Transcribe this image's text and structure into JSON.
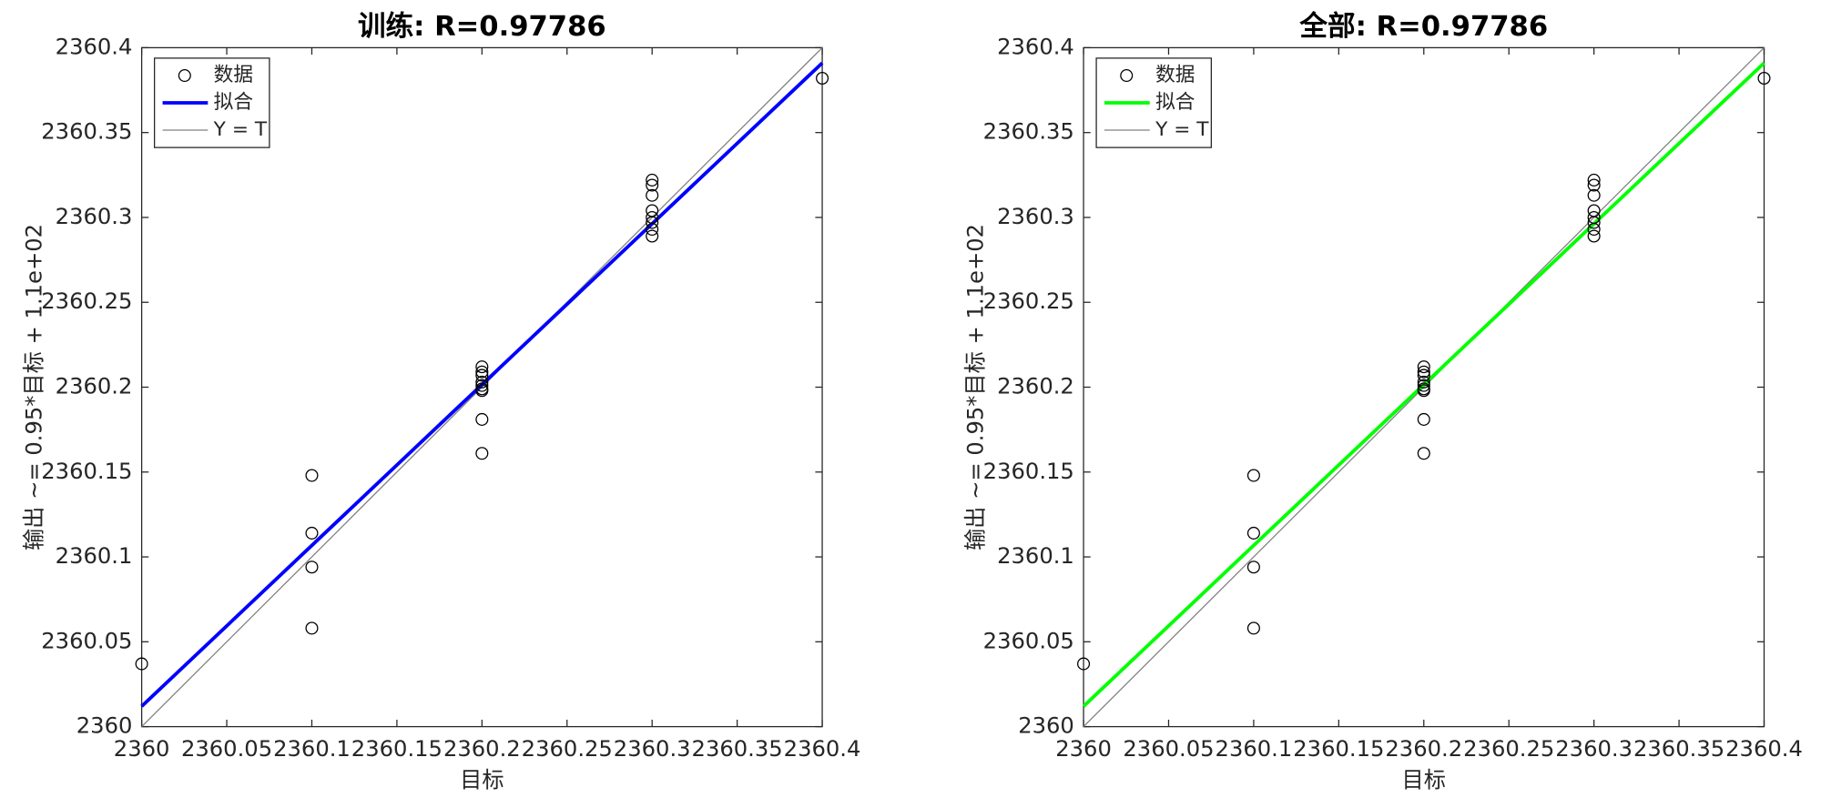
{
  "chart_data": [
    {
      "type": "scatter",
      "title": "训练: R=0.97786",
      "xlabel": "目标",
      "ylabel": "输出 ~= 0.95*目标 + 1.1e+02",
      "xlim": [
        2360,
        2360.4
      ],
      "ylim": [
        2360,
        2360.4
      ],
      "xticks": [
        2360,
        2360.05,
        2360.1,
        2360.15,
        2360.2,
        2360.25,
        2360.3,
        2360.35,
        2360.4
      ],
      "yticks": [
        2360,
        2360.05,
        2360.1,
        2360.15,
        2360.2,
        2360.25,
        2360.3,
        2360.35,
        2360.4
      ],
      "grid": false,
      "legend": "northwest",
      "series": [
        {
          "name": "数据",
          "color": "#000000",
          "mode": "markers",
          "x": [
            2360,
            2360.4,
            2360.1,
            2360.1,
            2360.1,
            2360.1,
            2360.2,
            2360.2,
            2360.2,
            2360.2,
            2360.2,
            2360.2,
            2360.2,
            2360.2,
            2360.2,
            2360.3,
            2360.3,
            2360.3,
            2360.3,
            2360.3,
            2360.3,
            2360.3,
            2360.3
          ],
          "values": [
            2360.037,
            2360.382,
            2360.148,
            2360.114,
            2360.094,
            2360.058,
            2360.212,
            2360.209,
            2360.207,
            2360.203,
            2360.201,
            2360.199,
            2360.198,
            2360.181,
            2360.161,
            2360.322,
            2360.319,
            2360.313,
            2360.304,
            2360.3,
            2360.297,
            2360.293,
            2360.289
          ]
        },
        {
          "name": "拟合",
          "color": "#0000ff",
          "mode": "line",
          "x": [
            2360,
            2360.4
          ],
          "values": [
            2360.012,
            2360.391
          ]
        },
        {
          "name": "Y = T",
          "color": "#808080",
          "mode": "thin",
          "x": [
            2360,
            2360.4
          ],
          "values": [
            2360,
            2360.4
          ]
        }
      ]
    },
    {
      "type": "scatter",
      "title": "全部: R=0.97786",
      "xlabel": "目标",
      "ylabel": "输出 ~= 0.95*目标 + 1.1e+02",
      "xlim": [
        2360,
        2360.4
      ],
      "ylim": [
        2360,
        2360.4
      ],
      "xticks": [
        2360,
        2360.05,
        2360.1,
        2360.15,
        2360.2,
        2360.25,
        2360.3,
        2360.35,
        2360.4
      ],
      "yticks": [
        2360,
        2360.05,
        2360.1,
        2360.15,
        2360.2,
        2360.25,
        2360.3,
        2360.35,
        2360.4
      ],
      "grid": false,
      "legend": "northwest",
      "series": [
        {
          "name": "数据",
          "color": "#000000",
          "mode": "markers",
          "x": [
            2360,
            2360.4,
            2360.1,
            2360.1,
            2360.1,
            2360.1,
            2360.2,
            2360.2,
            2360.2,
            2360.2,
            2360.2,
            2360.2,
            2360.2,
            2360.2,
            2360.2,
            2360.3,
            2360.3,
            2360.3,
            2360.3,
            2360.3,
            2360.3,
            2360.3,
            2360.3
          ],
          "values": [
            2360.037,
            2360.382,
            2360.148,
            2360.114,
            2360.094,
            2360.058,
            2360.212,
            2360.209,
            2360.207,
            2360.203,
            2360.201,
            2360.199,
            2360.198,
            2360.181,
            2360.161,
            2360.322,
            2360.319,
            2360.313,
            2360.304,
            2360.3,
            2360.297,
            2360.293,
            2360.289
          ]
        },
        {
          "name": "拟合",
          "color": "#00ff00",
          "mode": "line",
          "x": [
            2360,
            2360.4
          ],
          "values": [
            2360.012,
            2360.391
          ]
        },
        {
          "name": "Y = T",
          "color": "#808080",
          "mode": "thin",
          "x": [
            2360,
            2360.4
          ],
          "values": [
            2360,
            2360.4
          ]
        }
      ]
    }
  ]
}
